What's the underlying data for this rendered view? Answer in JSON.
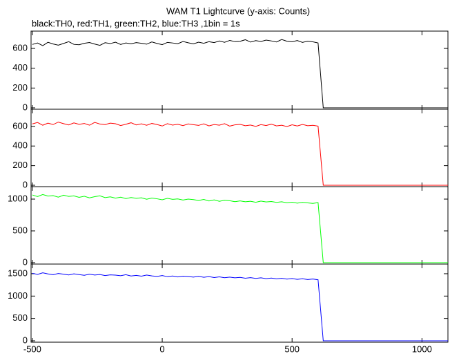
{
  "chart_data": {
    "type": "line",
    "title": "WAM T1 Lightcurve (y-axis: Counts)",
    "subtitle": "black:TH0, red:TH1, green:TH2, blue:TH3 ,1bin = 1s",
    "x": [
      -500,
      -480,
      -460,
      -440,
      -420,
      -400,
      -380,
      -360,
      -340,
      -320,
      -300,
      -280,
      -260,
      -240,
      -220,
      -200,
      -180,
      -160,
      -140,
      -120,
      -100,
      -80,
      -60,
      -40,
      -20,
      0,
      20,
      40,
      60,
      80,
      100,
      120,
      140,
      160,
      180,
      200,
      220,
      240,
      260,
      280,
      300,
      320,
      340,
      360,
      380,
      400,
      420,
      440,
      460,
      480,
      500,
      520,
      540,
      560,
      580,
      600,
      620,
      640,
      660,
      680,
      700,
      720,
      740,
      760,
      780,
      800,
      820,
      840,
      860,
      880,
      900,
      920,
      940,
      960,
      980,
      1000,
      1020,
      1040,
      1060,
      1080,
      1100
    ],
    "xlim": [
      -505,
      1100
    ],
    "xticks": [
      -500,
      0,
      500,
      1000
    ],
    "panels": [
      {
        "color": "#000000",
        "ylim": [
          -14,
          775
        ],
        "yticks": [
          0,
          200,
          400,
          600
        ],
        "values": [
          640,
          655,
          628,
          662,
          645,
          633,
          650,
          668,
          641,
          637,
          652,
          660,
          644,
          631,
          658,
          649,
          663,
          640,
          655,
          647,
          659,
          652,
          643,
          666,
          650,
          638,
          661,
          655,
          648,
          670,
          657,
          646,
          663,
          652,
          668,
          659,
          675,
          662,
          681,
          669,
          672,
          688,
          664,
          679,
          670,
          684,
          676,
          665,
          690,
          673,
          668,
          680,
          661,
          674,
          667,
          655,
          0,
          0,
          0,
          0,
          0,
          0,
          0,
          0,
          0,
          0,
          0,
          0,
          0,
          0,
          0,
          0,
          0,
          0,
          0,
          0,
          0,
          0,
          0,
          0,
          0
        ]
      },
      {
        "color": "#ff0000",
        "ylim": [
          -14,
          775
        ],
        "yticks": [
          0,
          200,
          400,
          600
        ],
        "values": [
          625,
          640,
          612,
          633,
          619,
          644,
          628,
          615,
          636,
          621,
          630,
          612,
          641,
          624,
          618,
          633,
          627,
          609,
          622,
          637,
          615,
          626,
          611,
          630,
          619,
          604,
          628,
          613,
          622,
          608,
          625,
          617,
          610,
          626,
          605,
          619,
          612,
          628,
          603,
          616,
          621,
          607,
          614,
          600,
          618,
          609,
          623,
          605,
          612,
          598,
          616,
          604,
          620,
          607,
          611,
          603,
          0,
          0,
          0,
          0,
          0,
          0,
          0,
          0,
          0,
          0,
          0,
          0,
          0,
          0,
          0,
          0,
          0,
          0,
          0,
          0,
          0,
          0,
          0,
          0,
          0
        ]
      },
      {
        "color": "#00ff00",
        "ylim": [
          -22,
          1196
        ],
        "yticks": [
          0,
          500,
          1000
        ],
        "values": [
          1065,
          1040,
          1072,
          1048,
          1055,
          1030,
          1061,
          1042,
          1050,
          1028,
          1045,
          1019,
          1038,
          1052,
          1024,
          1036,
          1015,
          1030,
          1008,
          1025,
          1012,
          1020,
          998,
          1017,
          1005,
          990,
          1012,
          996,
          1003,
          985,
          1000,
          992,
          978,
          995,
          970,
          988,
          965,
          982,
          974,
          960,
          972,
          958,
          966,
          950,
          969,
          955,
          962,
          948,
          958,
          942,
          951,
          936,
          949,
          940,
          932,
          945,
          0,
          0,
          0,
          0,
          0,
          0,
          0,
          0,
          0,
          0,
          0,
          0,
          0,
          0,
          0,
          0,
          0,
          0,
          0,
          0,
          0,
          0,
          0,
          0,
          0
        ]
      },
      {
        "color": "#0000ff",
        "ylim": [
          -31,
          1716
        ],
        "yticks": [
          0,
          500,
          1000,
          1500
        ],
        "values": [
          1510,
          1485,
          1520,
          1495,
          1478,
          1505,
          1490,
          1472,
          1498,
          1480,
          1465,
          1490,
          1470,
          1482,
          1460,
          1475,
          1468,
          1455,
          1478,
          1450,
          1462,
          1445,
          1470,
          1452,
          1440,
          1458,
          1435,
          1450,
          1428,
          1446,
          1438,
          1425,
          1442,
          1420,
          1435,
          1415,
          1430,
          1410,
          1425,
          1408,
          1418,
          1400,
          1412,
          1395,
          1408,
          1390,
          1402,
          1385,
          1398,
          1380,
          1392,
          1375,
          1388,
          1370,
          1382,
          1365,
          0,
          0,
          0,
          0,
          0,
          0,
          0,
          0,
          0,
          0,
          0,
          0,
          0,
          0,
          0,
          0,
          0,
          0,
          0,
          0,
          0,
          0,
          0,
          0,
          0
        ]
      }
    ]
  }
}
